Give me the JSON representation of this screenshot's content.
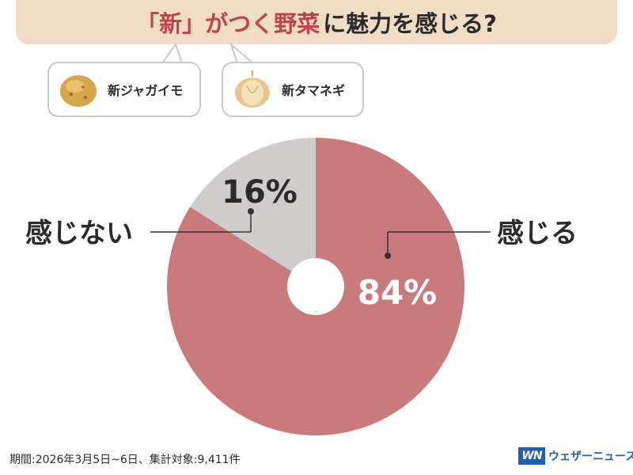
{
  "title": {
    "accent": "「新」がつく野菜",
    "rest": "に魅力を感じる?"
  },
  "vegetables": [
    {
      "label": "新ジャガイモ",
      "icon": "potato-icon"
    },
    {
      "label": "新タマネギ",
      "icon": "onion-icon"
    }
  ],
  "chart_data": {
    "type": "pie",
    "slices": [
      {
        "label": "感じる",
        "value": 84,
        "value_label": "84%",
        "color": "#c97a7c"
      },
      {
        "label": "感じない",
        "value": 16,
        "value_label": "16%",
        "color": "#cfcccb"
      }
    ]
  },
  "footer": {
    "note": "期間:2026年3月5日~6日、集計対象:9,411件"
  },
  "brand": {
    "logo": "WN",
    "name": "ウェザーニュース",
    "color": "#1e5fb0"
  }
}
